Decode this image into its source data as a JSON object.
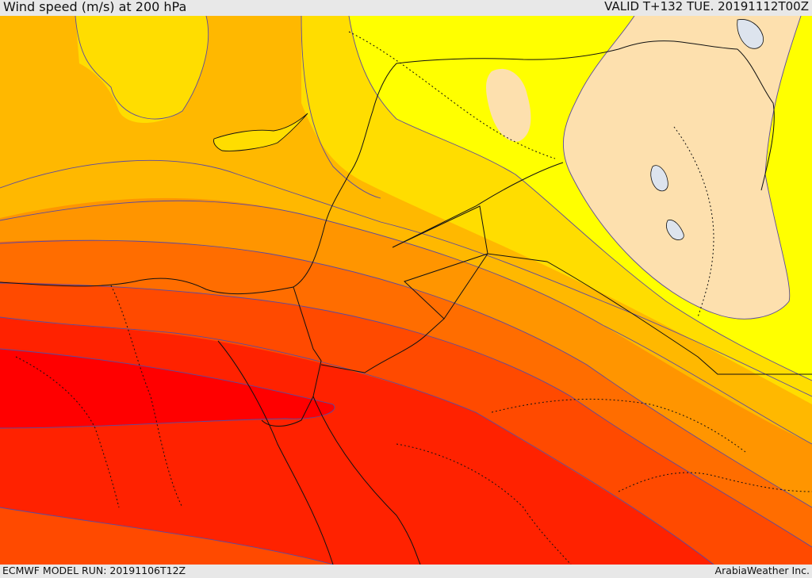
{
  "header": {
    "title": "Wind speed (m/s) at 200 hPa",
    "valid_time": "VALID T+132 TUE. 20191112T00Z"
  },
  "footer": {
    "model_run": "ECMWF MODEL RUN: 20191106T12Z",
    "credit": "ArabiaWeather Inc."
  },
  "colors": {
    "band_light_tan": "#fde0ae",
    "band_yellow": "#ffff00",
    "band_gold": "#ffdd00",
    "band_amber": "#ffb800",
    "band_orange": "#ff9500",
    "band_dark_orange": "#ff6d00",
    "band_orange_red": "#ff4a00",
    "band_red": "#ff2200",
    "band_deep_red": "#ff0000",
    "contour_line": "#6b3fa0",
    "border_line": "#111111"
  }
}
